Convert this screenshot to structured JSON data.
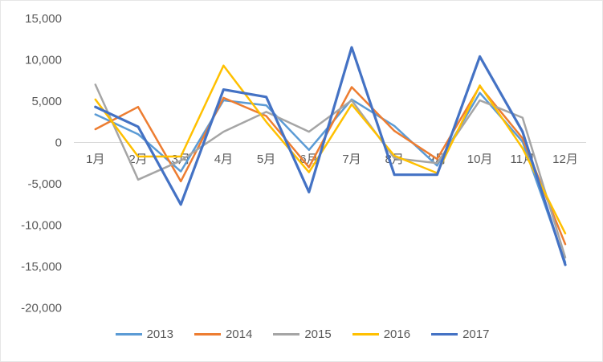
{
  "chart": {
    "background": "#FFFFFF",
    "border_color": "#E6E6E6",
    "axis_text_color": "#595959",
    "gridline_color": "#D9D9D9"
  },
  "chart_data": {
    "type": "line",
    "title": "",
    "xlabel": "",
    "ylabel": "",
    "categories": [
      "1月",
      "2月",
      "3月",
      "4月",
      "5月",
      "6月",
      "7月",
      "8月",
      "9月",
      "10月",
      "11月",
      "12月"
    ],
    "y_ticks": {
      "labels": [
        "15,000",
        "10,000",
        "5,000",
        "0",
        "-5,000",
        "-10,000",
        "-15,000",
        "-20,000"
      ],
      "values": [
        15000,
        10000,
        5000,
        0,
        -5000,
        -10000,
        -15000,
        -20000
      ]
    },
    "ylim": [
      -20000,
      15000
    ],
    "grid": "zero-line-only",
    "legend_position": "bottom",
    "series": [
      {
        "name": "2013",
        "color": "#5B9BD5",
        "values": [
          3400,
          1000,
          -3500,
          5100,
          4500,
          -900,
          5200,
          2000,
          -2800,
          6000,
          100,
          -14500
        ]
      },
      {
        "name": "2014",
        "color": "#ED7D31",
        "values": [
          1600,
          4300,
          -4700,
          5400,
          3200,
          -3000,
          6700,
          1400,
          -2000,
          6800,
          500,
          -12300
        ]
      },
      {
        "name": "2015",
        "color": "#A5A5A5",
        "values": [
          7000,
          -4500,
          -2200,
          1300,
          3700,
          1300,
          5100,
          -1900,
          -2500,
          5100,
          3000,
          -13900
        ]
      },
      {
        "name": "2016",
        "color": "#FFC000",
        "values": [
          5200,
          -1700,
          -1700,
          9300,
          2500,
          -3600,
          4600,
          -1600,
          -3700,
          6900,
          -700,
          -11000
        ]
      },
      {
        "name": "2017",
        "color": "#4472C4",
        "values": [
          4300,
          1900,
          -7500,
          6400,
          5500,
          -6000,
          11500,
          -3900,
          -3900,
          10400,
          1300,
          -14800
        ]
      }
    ]
  }
}
